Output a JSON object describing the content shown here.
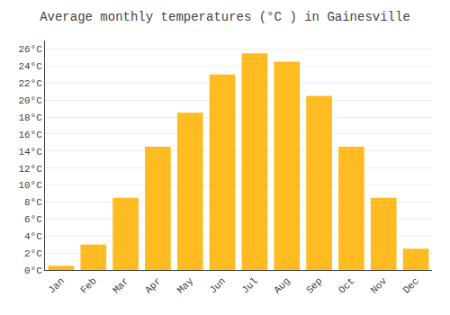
{
  "chart_data": {
    "type": "bar",
    "title": "Average monthly temperatures (°C ) in Gainesville",
    "categories": [
      "Jan",
      "Feb",
      "Mar",
      "Apr",
      "May",
      "Jun",
      "Jul",
      "Aug",
      "Sep",
      "Oct",
      "Nov",
      "Dec"
    ],
    "values": [
      0.5,
      3.0,
      8.5,
      14.5,
      18.5,
      23.0,
      25.5,
      24.5,
      20.5,
      14.5,
      8.5,
      2.5
    ],
    "color": "#FFBB22",
    "ylim": [
      0,
      27
    ],
    "yticks": [
      {
        "value": 0,
        "label": "0°C"
      },
      {
        "value": 2,
        "label": "2°C"
      },
      {
        "value": 4,
        "label": "4°C"
      },
      {
        "value": 6,
        "label": "6°C"
      },
      {
        "value": 8,
        "label": "8°C"
      },
      {
        "value": 10,
        "label": "10°C"
      },
      {
        "value": 12,
        "label": "12°C"
      },
      {
        "value": 14,
        "label": "14°C"
      },
      {
        "value": 16,
        "label": "16°C"
      },
      {
        "value": 18,
        "label": "18°C"
      },
      {
        "value": 20,
        "label": "20°C"
      },
      {
        "value": 22,
        "label": "22°C"
      },
      {
        "value": 24,
        "label": "24°C"
      },
      {
        "value": 26,
        "label": "26°C"
      }
    ],
    "grid": true
  }
}
